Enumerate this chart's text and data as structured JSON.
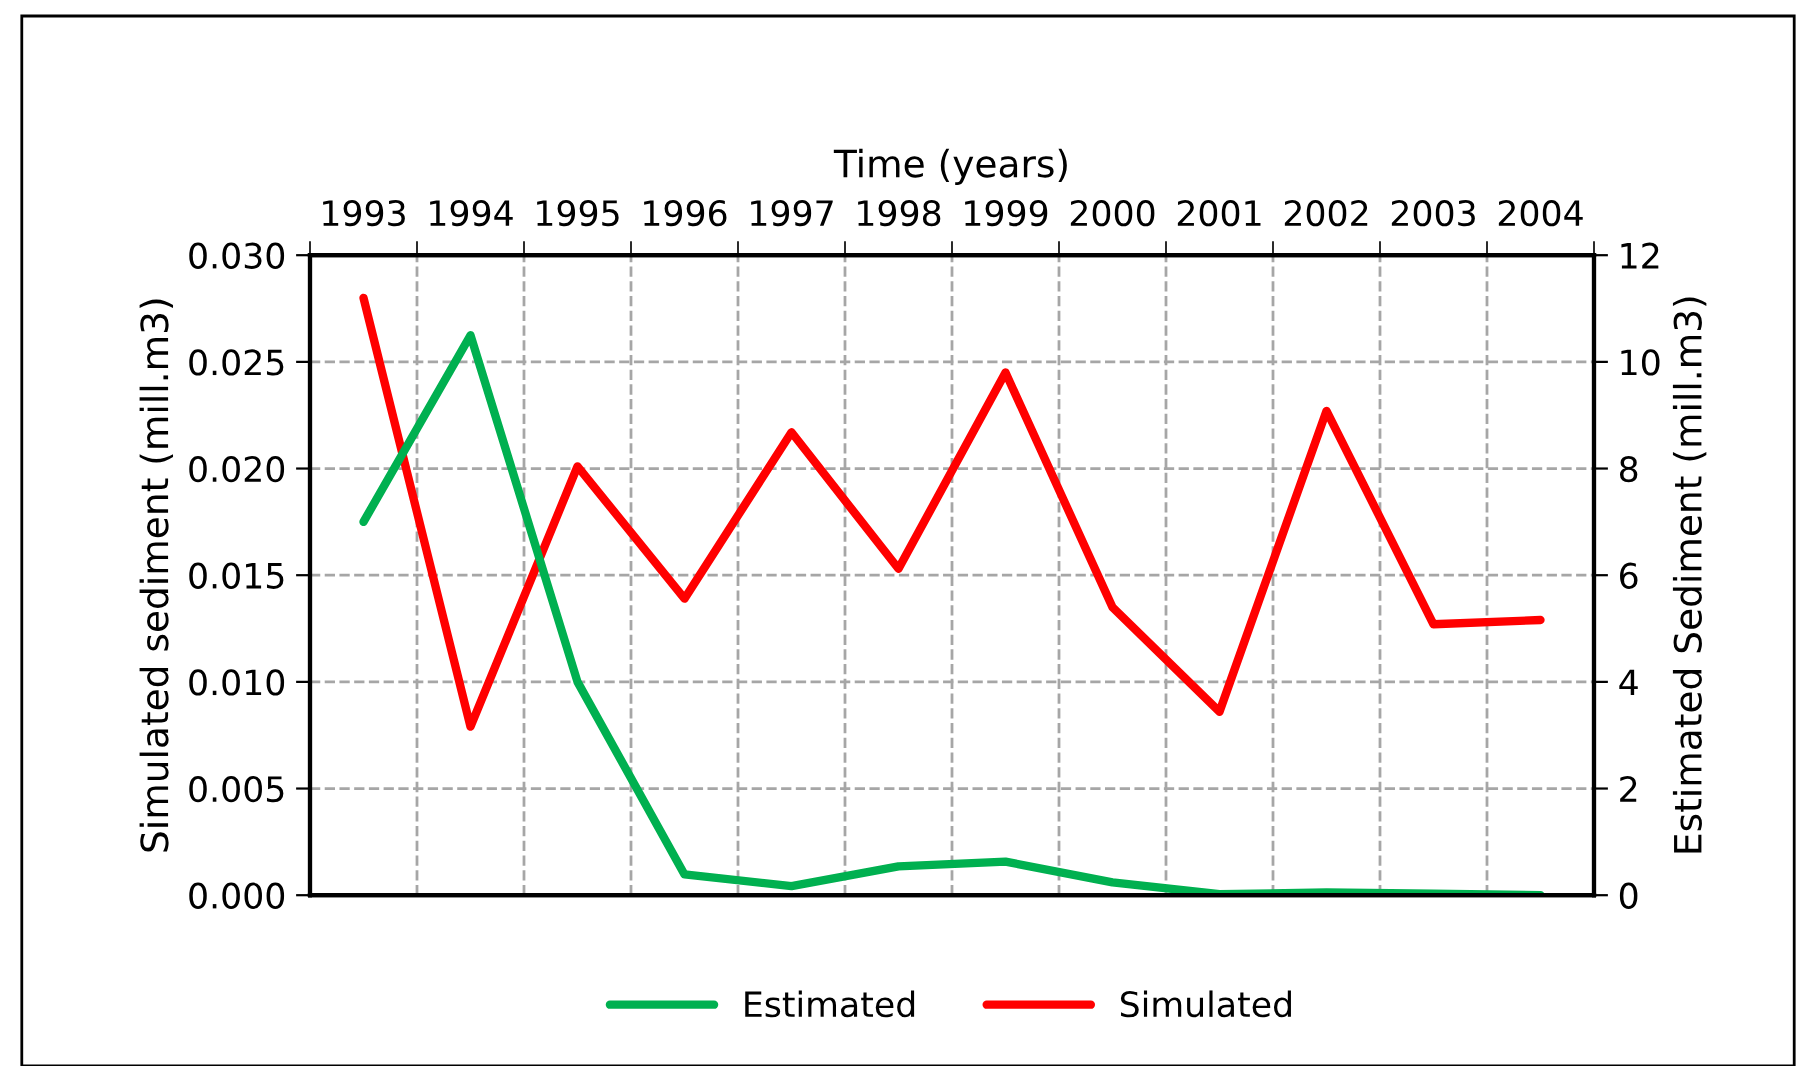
{
  "chart_data": {
    "type": "line",
    "xlabel": "Time (years)",
    "ylabel": "Simulated sediment (mill.m3)",
    "y2label": "Estimated Sediment (mill.m3)",
    "categories": [
      "1993",
      "1994",
      "1995",
      "1996",
      "1997",
      "1998",
      "1999",
      "2000",
      "2001",
      "2002",
      "2003",
      "2004"
    ],
    "series": [
      {
        "name": "Estimated",
        "color": "#00b050",
        "axis": "y2",
        "values": [
          7.0,
          10.5,
          4.0,
          0.39,
          0.17,
          0.54,
          0.63,
          0.24,
          0.02,
          0.05,
          0.03,
          0.0
        ]
      },
      {
        "name": "Simulated",
        "color": "#ff0000",
        "axis": "y",
        "values": [
          0.028,
          0.0079,
          0.0201,
          0.0139,
          0.0217,
          0.0153,
          0.0245,
          0.0135,
          0.0086,
          0.0227,
          0.0127,
          0.0129
        ]
      }
    ],
    "ylim": [
      0,
      0.03
    ],
    "yticks": [
      {
        "value": 0,
        "label": "0.000"
      },
      {
        "value": 0.005,
        "label": "0.005"
      },
      {
        "value": 0.01,
        "label": "0.010"
      },
      {
        "value": 0.015,
        "label": "0.015"
      },
      {
        "value": 0.02,
        "label": "0.020"
      },
      {
        "value": 0.025,
        "label": "0.025"
      },
      {
        "value": 0.03,
        "label": "0.030"
      }
    ],
    "y2lim": [
      0,
      12
    ],
    "y2ticks": [
      0,
      2,
      4,
      6,
      8,
      10,
      12
    ],
    "grid": true,
    "legend": "bottom",
    "marker": "none",
    "line_style": "solid"
  }
}
